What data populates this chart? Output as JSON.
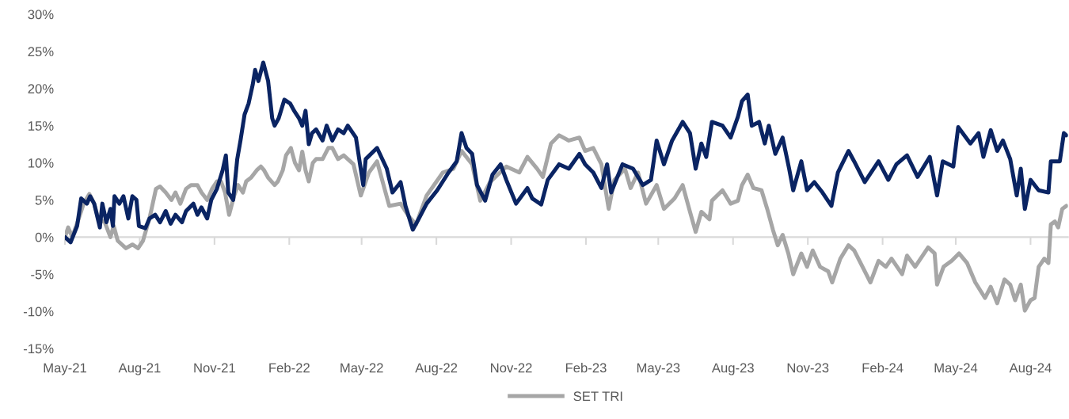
{
  "chart_data": {
    "type": "line",
    "xlim": [
      "2021-05-01",
      "2024-09-16"
    ],
    "xticks": [
      {
        "value": "2021-05-01",
        "label": "May-21"
      },
      {
        "value": "2021-08-01",
        "label": "Aug-21"
      },
      {
        "value": "2021-11-01",
        "label": "Nov-21"
      },
      {
        "value": "2022-02-01",
        "label": "Feb-22"
      },
      {
        "value": "2022-05-01",
        "label": "May-22"
      },
      {
        "value": "2022-08-01",
        "label": "Aug-22"
      },
      {
        "value": "2022-11-01",
        "label": "Nov-22"
      },
      {
        "value": "2023-02-01",
        "label": "Feb-23"
      },
      {
        "value": "2023-05-01",
        "label": "May-23"
      },
      {
        "value": "2023-08-01",
        "label": "Aug-23"
      },
      {
        "value": "2023-11-01",
        "label": "Nov-23"
      },
      {
        "value": "2024-02-01",
        "label": "Feb-24"
      },
      {
        "value": "2024-05-01",
        "label": "May-24"
      },
      {
        "value": "2024-08-01",
        "label": "Aug-24"
      }
    ],
    "ylim": [
      -15,
      30
    ],
    "yticks": [
      {
        "value": -15,
        "label": "-15%"
      },
      {
        "value": -10,
        "label": "-10%"
      },
      {
        "value": -5,
        "label": "-5%"
      },
      {
        "value": 0,
        "label": "0%"
      },
      {
        "value": 5,
        "label": "5%"
      },
      {
        "value": 10,
        "label": "10%"
      },
      {
        "value": 15,
        "label": "15%"
      },
      {
        "value": 20,
        "label": "20%"
      },
      {
        "value": 25,
        "label": "25%"
      },
      {
        "value": 30,
        "label": "30%"
      }
    ],
    "legend": "bottom",
    "marker": "none",
    "line_style": "solid",
    "series": [
      {
        "color": "#0a2463",
        "x": [
          "2021-05-01",
          "2021-05-08",
          "2021-05-16",
          "2021-05-21",
          "2021-05-28",
          "2021-06-01",
          "2021-06-06",
          "2021-06-13",
          "2021-06-16",
          "2021-06-21",
          "2021-06-26",
          "2021-06-29",
          "2021-07-01",
          "2021-07-07",
          "2021-07-12",
          "2021-07-18",
          "2021-07-23",
          "2021-07-28",
          "2021-07-31",
          "2021-08-08",
          "2021-08-13",
          "2021-08-20",
          "2021-08-26",
          "2021-09-02",
          "2021-09-08",
          "2021-09-14",
          "2021-09-22",
          "2021-09-27",
          "2021-10-06",
          "2021-10-11",
          "2021-10-16",
          "2021-10-23",
          "2021-10-28",
          "2021-11-04",
          "2021-11-11",
          "2021-11-15",
          "2021-11-18",
          "2021-11-24",
          "2021-11-29",
          "2021-12-03",
          "2021-12-08",
          "2021-12-13",
          "2021-12-18",
          "2021-12-21",
          "2021-12-25",
          "2021-12-31",
          "2022-01-06",
          "2022-01-11",
          "2022-01-14",
          "2022-01-19",
          "2022-01-26",
          "2022-02-02",
          "2022-02-07",
          "2022-02-13",
          "2022-02-17",
          "2022-02-21",
          "2022-02-25",
          "2022-03-01",
          "2022-03-06",
          "2022-03-14",
          "2022-03-19",
          "2022-03-26",
          "2022-04-02",
          "2022-04-09",
          "2022-04-14",
          "2022-04-24",
          "2022-05-03",
          "2022-05-06",
          "2022-05-20",
          "2022-06-01",
          "2022-06-08",
          "2022-06-18",
          "2022-06-24",
          "2022-07-03",
          "2022-07-10",
          "2022-07-20",
          "2022-08-02",
          "2022-08-16",
          "2022-08-26",
          "2022-09-01",
          "2022-09-07",
          "2022-09-14",
          "2022-09-20",
          "2022-09-30",
          "2022-10-09",
          "2022-10-19",
          "2022-10-26",
          "2022-11-07",
          "2022-11-21",
          "2022-11-27",
          "2022-12-08",
          "2022-12-16",
          "2022-12-30",
          "2023-01-11",
          "2023-01-24",
          "2023-01-31",
          "2023-02-10",
          "2023-02-20",
          "2023-02-27",
          "2023-03-04",
          "2023-03-18",
          "2023-03-31",
          "2023-04-12",
          "2023-04-22",
          "2023-04-29",
          "2023-05-08",
          "2023-05-18",
          "2023-05-31",
          "2023-06-09",
          "2023-06-16",
          "2023-06-23",
          "2023-06-29",
          "2023-07-06",
          "2023-07-19",
          "2023-07-29",
          "2023-08-07",
          "2023-08-12",
          "2023-08-19",
          "2023-08-24",
          "2023-09-02",
          "2023-09-09",
          "2023-09-14",
          "2023-09-22",
          "2023-10-01",
          "2023-10-09",
          "2023-10-14",
          "2023-10-24",
          "2023-10-31",
          "2023-11-09",
          "2023-11-19",
          "2023-11-30",
          "2023-12-08",
          "2023-12-21",
          "2023-12-28",
          "2024-01-10",
          "2024-01-27",
          "2024-02-08",
          "2024-02-18",
          "2024-03-02",
          "2024-03-15",
          "2024-03-30",
          "2024-04-08",
          "2024-04-15",
          "2024-04-28",
          "2024-05-04",
          "2024-05-19",
          "2024-05-29",
          "2024-06-04",
          "2024-06-13",
          "2024-06-21",
          "2024-06-28",
          "2024-07-07",
          "2024-07-15",
          "2024-07-20",
          "2024-07-25",
          "2024-08-01",
          "2024-08-11",
          "2024-08-23",
          "2024-08-26",
          "2024-09-06",
          "2024-09-11",
          "2024-09-14"
        ],
        "values": [
          0,
          -0.7,
          1.5,
          5.2,
          4.5,
          5.5,
          4.5,
          1.3,
          4.5,
          2,
          3.8,
          1.5,
          5.5,
          4.5,
          5.5,
          2.5,
          5.5,
          5,
          1.5,
          1.2,
          2.5,
          3,
          2,
          3.5,
          1.8,
          3,
          2,
          3.5,
          4.5,
          3,
          4,
          2.5,
          5,
          6.5,
          9,
          11,
          6,
          5,
          10.5,
          13,
          16.5,
          18,
          20.5,
          22.5,
          21,
          23.5,
          21,
          16,
          15,
          16,
          18.5,
          18,
          17,
          16,
          15,
          17,
          12.5,
          14,
          14.5,
          13,
          15,
          13,
          14.5,
          14,
          15,
          13.4,
          7,
          10.5,
          12,
          9.2,
          6,
          7.4,
          4.2,
          1,
          2.4,
          4.5,
          6.3,
          8.7,
          10.2,
          14,
          12,
          11.2,
          7,
          4.9,
          8.4,
          9.8,
          7.7,
          4.5,
          6.6,
          5.2,
          4.4,
          7.7,
          9.8,
          9.2,
          11.2,
          9.8,
          8.7,
          6.6,
          9.8,
          6,
          9.8,
          9.2,
          7,
          7.7,
          13,
          9.8,
          13,
          15.5,
          14,
          9.2,
          12.6,
          10.8,
          15.5,
          15,
          13.4,
          16.2,
          18.3,
          19.2,
          15,
          15.5,
          12.6,
          15,
          11.2,
          13.4,
          9.2,
          6.3,
          10.2,
          6.3,
          7.4,
          6,
          4.2,
          8.7,
          11.6,
          10.2,
          7.4,
          10.2,
          7.7,
          9.8,
          11,
          8.1,
          10.8,
          5.6,
          10.2,
          9.5,
          14.8,
          12.6,
          14,
          10.8,
          14.4,
          11.6,
          13,
          10.5,
          5.6,
          9.2,
          3.8,
          7.7,
          6.3,
          6,
          10.2,
          10.2,
          14,
          13.7
        ]
      },
      {
        "name": "SET TRI",
        "color": "#a6a6a6",
        "x": [
          "2021-05-01",
          "2021-05-05",
          "2021-05-10",
          "2021-05-18",
          "2021-05-24",
          "2021-05-31",
          "2021-06-06",
          "2021-06-11",
          "2021-06-19",
          "2021-06-26",
          "2021-06-30",
          "2021-07-05",
          "2021-07-15",
          "2021-07-23",
          "2021-07-30",
          "2021-08-05",
          "2021-08-13",
          "2021-08-18",
          "2021-08-21",
          "2021-08-26",
          "2021-09-02",
          "2021-09-09",
          "2021-09-14",
          "2021-09-20",
          "2021-09-27",
          "2021-10-03",
          "2021-10-11",
          "2021-10-16",
          "2021-10-23",
          "2021-10-29",
          "2021-11-04",
          "2021-11-09",
          "2021-11-14",
          "2021-11-19",
          "2021-11-25",
          "2021-11-30",
          "2021-12-06",
          "2021-12-10",
          "2021-12-16",
          "2021-12-23",
          "2021-12-28",
          "2022-01-01",
          "2022-01-06",
          "2022-01-14",
          "2022-01-18",
          "2022-01-24",
          "2022-01-28",
          "2022-02-03",
          "2022-02-08",
          "2022-02-13",
          "2022-02-17",
          "2022-02-21",
          "2022-02-25",
          "2022-03-02",
          "2022-03-06",
          "2022-03-14",
          "2022-03-21",
          "2022-03-26",
          "2022-04-02",
          "2022-04-09",
          "2022-04-14",
          "2022-04-21",
          "2022-04-30",
          "2022-05-10",
          "2022-05-20",
          "2022-06-04",
          "2022-06-18",
          "2022-06-28",
          "2022-07-07",
          "2022-07-20",
          "2022-08-09",
          "2022-08-22",
          "2022-09-01",
          "2022-09-14",
          "2022-09-24",
          "2022-10-06",
          "2022-10-26",
          "2022-11-11",
          "2022-11-21",
          "2022-12-03",
          "2022-12-10",
          "2022-12-20",
          "2022-12-30",
          "2023-01-11",
          "2023-01-24",
          "2023-01-31",
          "2023-02-10",
          "2023-02-20",
          "2023-03-01",
          "2023-03-08",
          "2023-03-21",
          "2023-03-28",
          "2023-04-06",
          "2023-04-16",
          "2023-04-29",
          "2023-05-08",
          "2023-05-21",
          "2023-05-31",
          "2023-06-09",
          "2023-06-16",
          "2023-06-23",
          "2023-07-03",
          "2023-07-06",
          "2023-07-19",
          "2023-07-29",
          "2023-08-07",
          "2023-08-12",
          "2023-08-19",
          "2023-08-26",
          "2023-09-05",
          "2023-09-12",
          "2023-09-19",
          "2023-09-25",
          "2023-10-01",
          "2023-10-08",
          "2023-10-14",
          "2023-10-24",
          "2023-10-31",
          "2023-11-07",
          "2023-11-16",
          "2023-11-26",
          "2023-12-01",
          "2023-12-11",
          "2023-12-21",
          "2023-12-28",
          "2024-01-10",
          "2024-01-17",
          "2024-01-27",
          "2024-02-05",
          "2024-02-12",
          "2024-02-25",
          "2024-03-02",
          "2024-03-12",
          "2024-03-28",
          "2024-04-05",
          "2024-04-08",
          "2024-04-16",
          "2024-04-26",
          "2024-05-05",
          "2024-05-15",
          "2024-05-25",
          "2024-06-06",
          "2024-06-13",
          "2024-06-21",
          "2024-06-30",
          "2024-07-07",
          "2024-07-13",
          "2024-07-20",
          "2024-07-25",
          "2024-08-01",
          "2024-08-06",
          "2024-08-11",
          "2024-08-18",
          "2024-08-23",
          "2024-08-26",
          "2024-08-31",
          "2024-09-04",
          "2024-09-09",
          "2024-09-14"
        ],
        "values": [
          0,
          1.3,
          0,
          2.5,
          4.5,
          5.8,
          4.5,
          2.5,
          2,
          0,
          1.5,
          -0.5,
          -1.5,
          -1,
          -1.5,
          -0.5,
          2.5,
          5,
          6.5,
          6.8,
          6,
          5,
          6,
          4.5,
          6.5,
          7,
          7,
          6,
          5,
          6.5,
          7.5,
          7.5,
          6,
          3,
          5.5,
          7,
          6,
          7.5,
          8,
          9,
          9.5,
          9,
          8,
          7,
          7.5,
          9,
          11,
          12,
          10,
          9,
          11.5,
          9,
          7.5,
          10,
          10.5,
          10.5,
          12,
          12,
          10.5,
          11,
          10.5,
          9.8,
          5.6,
          8.7,
          10.2,
          4.2,
          4.5,
          2.8,
          1.7,
          5.6,
          8.7,
          9.2,
          11.6,
          9.8,
          4.9,
          7.4,
          9.5,
          8.7,
          10.8,
          9.2,
          8.1,
          12.6,
          13.7,
          13,
          13.4,
          11.6,
          12,
          9.8,
          3.8,
          7.7,
          9.2,
          6.6,
          8.7,
          4.5,
          7,
          3.8,
          5.2,
          7,
          3.4,
          0.7,
          3.4,
          2.4,
          4.9,
          6.3,
          4.5,
          4.9,
          7,
          8.4,
          6.6,
          6.3,
          3.8,
          1,
          -1.1,
          0.3,
          -2.2,
          -5,
          -2.2,
          -4,
          -1.8,
          -4,
          -4.6,
          -6.1,
          -2.9,
          -1.1,
          -1.8,
          -4.6,
          -6.1,
          -3.2,
          -4,
          -2.9,
          -5,
          -2.5,
          -4,
          -1.4,
          -2.2,
          -6.4,
          -4,
          -3.2,
          -2.2,
          -3.5,
          -6.1,
          -8.2,
          -6.7,
          -8.9,
          -5.7,
          -6.4,
          -8.5,
          -6.4,
          -9.9,
          -8.5,
          -8.2,
          -4,
          -2.9,
          -3.5,
          1.7,
          2.1,
          1.3,
          3.8,
          4.2
        ]
      }
    ]
  }
}
